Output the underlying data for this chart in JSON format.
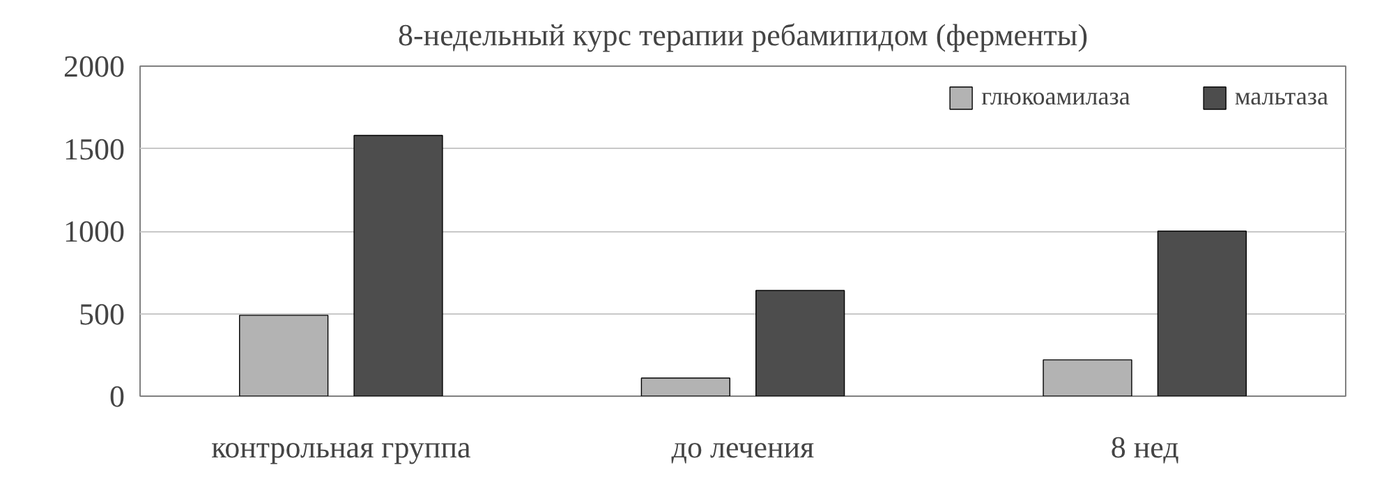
{
  "chart_data": {
    "type": "bar",
    "title": "8-недельный курс терапии ребамипидом (ферменты)",
    "categories": [
      "контрольная группа",
      "до лечения",
      "8 нед"
    ],
    "series": [
      {
        "name": "глюкоамилаза",
        "color": "#b3b3b3",
        "values": [
          490,
          110,
          220
        ]
      },
      {
        "name": "мальтаза",
        "color": "#4d4d4d",
        "values": [
          1580,
          640,
          1000
        ]
      }
    ],
    "ylim": [
      0,
      2000
    ],
    "yticks": [
      0,
      500,
      1000,
      1500,
      2000
    ],
    "grid": "y",
    "legend": "top right"
  }
}
